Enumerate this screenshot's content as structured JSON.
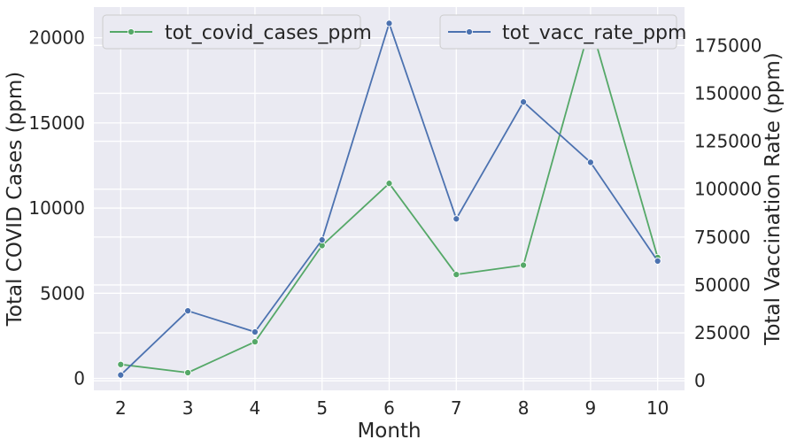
{
  "chart_data": {
    "type": "line",
    "x": [
      2,
      3,
      4,
      5,
      6,
      7,
      8,
      9,
      10
    ],
    "xlabel": "Month",
    "xticks": [
      "2",
      "3",
      "4",
      "5",
      "6",
      "7",
      "8",
      "9",
      "10"
    ],
    "grid": true,
    "axes": {
      "left": {
        "label": "Total COVID Cases (ppm)",
        "range": [
          -700,
          21800
        ],
        "ticks": [
          0,
          5000,
          10000,
          15000,
          20000
        ],
        "tick_labels": [
          "0",
          "5000",
          "10000",
          "15000",
          "20000"
        ]
      },
      "right": {
        "label": "Total Vaccination Rate (ppm)",
        "range": [
          -5000,
          195000
        ],
        "ticks": [
          0,
          25000,
          50000,
          75000,
          100000,
          125000,
          150000,
          175000
        ],
        "tick_labels": [
          "0",
          "25000",
          "50000",
          "75000",
          "100000",
          "125000",
          "150000",
          "175000"
        ]
      }
    },
    "series": [
      {
        "name": "tot_covid_cases_ppm",
        "axis": "left",
        "color": "#55a868",
        "legend_position": "upper-left",
        "values": [
          820,
          340,
          2150,
          7800,
          11450,
          6100,
          6650,
          20800,
          7100
        ]
      },
      {
        "name": "tot_vacc_rate_ppm",
        "axis": "right",
        "color": "#4c72b0",
        "legend_position": "upper-right",
        "values": [
          3000,
          36500,
          25500,
          73500,
          186500,
          84500,
          145500,
          114000,
          62500
        ]
      }
    ]
  }
}
